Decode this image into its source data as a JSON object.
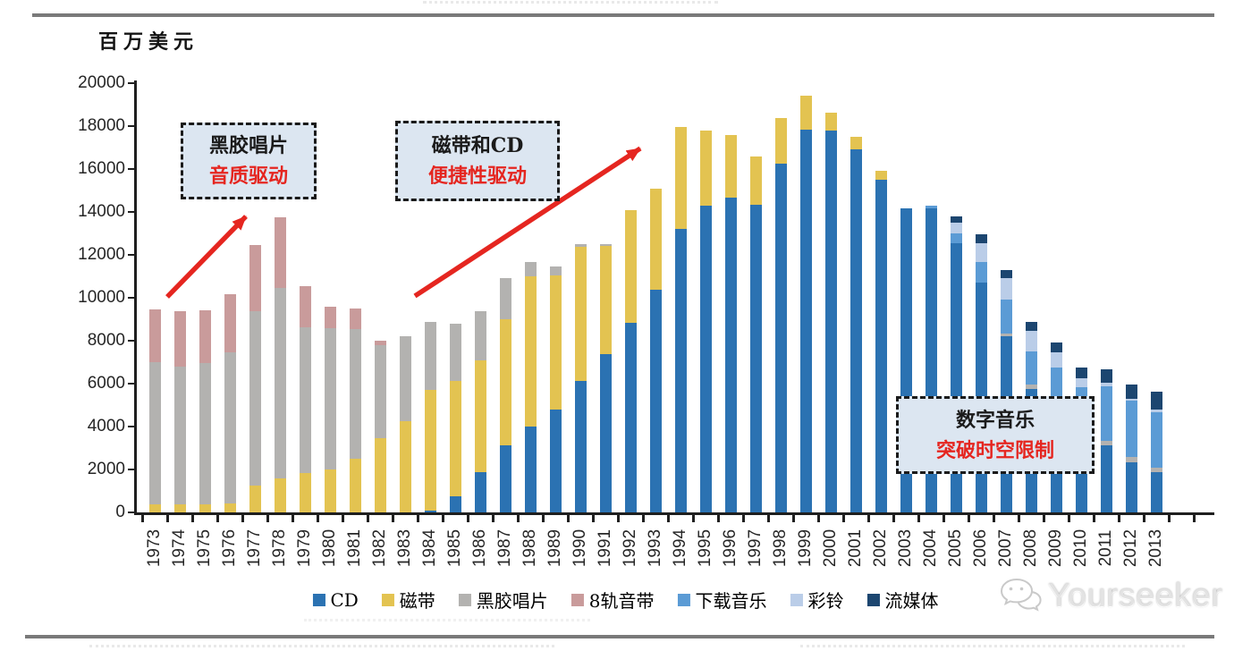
{
  "unit_label": "百万美元",
  "watermark": {
    "text": "Yourseeker"
  },
  "annotations": [
    {
      "line1": "黑胶唱片",
      "line2": "音质驱动"
    },
    {
      "line1": "磁带和CD",
      "line2": "便捷性驱动"
    },
    {
      "line1": "数字音乐",
      "line2": "突破时空限制"
    }
  ],
  "colors": {
    "accent_red": "#e52620",
    "callout_bg": "#dce6f1",
    "callout_border": "#1a1a1a",
    "axis": "#1f1f1f",
    "rule": "#7a7a7a",
    "label_text": "#262626",
    "watermark_gray": "#d6d6d6"
  },
  "chart_data": {
    "type": "bar",
    "stacked": true,
    "title": "",
    "xlabel": "",
    "ylabel": "百万美元",
    "ylim": [
      0,
      20000
    ],
    "ytick_step": 2000,
    "grid": false,
    "legend_position": "bottom",
    "categories": [
      "1973",
      "1974",
      "1975",
      "1976",
      "1977",
      "1978",
      "1979",
      "1980",
      "1981",
      "1982",
      "1983",
      "1984",
      "1985",
      "1986",
      "1987",
      "1988",
      "1989",
      "1990",
      "1991",
      "1992",
      "1993",
      "1994",
      "1995",
      "1996",
      "1997",
      "1998",
      "1999",
      "2000",
      "2001",
      "2002",
      "2003",
      "2004",
      "2005",
      "2006",
      "2007",
      "2008",
      "2009",
      "2010",
      "2011",
      "2012",
      "2013"
    ],
    "series": [
      {
        "name": "CD",
        "color": "#2b72b2",
        "values": [
          0,
          0,
          0,
          0,
          0,
          0,
          0,
          0,
          0,
          0,
          0,
          100,
          750,
          1870,
          3120,
          4020,
          4810,
          6110,
          7360,
          8820,
          10380,
          13210,
          14280,
          14670,
          14320,
          16270,
          17840,
          17800,
          16920,
          15480,
          14150,
          14150,
          12550,
          10700,
          8200,
          5760,
          5270,
          3450,
          3120,
          2350,
          1870
        ]
      },
      {
        "name": "磁带",
        "color": "#e3c351",
        "values": [
          390,
          390,
          390,
          430,
          1270,
          1590,
          1820,
          2000,
          2490,
          3470,
          4270,
          5620,
          5360,
          5220,
          5870,
          6960,
          6240,
          6250,
          5050,
          5260,
          4710,
          4740,
          3520,
          2900,
          2280,
          2090,
          1560,
          830,
          600,
          440,
          0,
          0,
          0,
          0,
          0,
          0,
          0,
          0,
          0,
          0,
          0
        ]
      },
      {
        "name": "黑胶唱片",
        "color": "#b3b2b0",
        "values": [
          6600,
          6420,
          6560,
          7040,
          8110,
          8880,
          6790,
          6590,
          6050,
          4310,
          3930,
          3170,
          2690,
          2270,
          1920,
          700,
          420,
          150,
          100,
          0,
          0,
          0,
          0,
          0,
          0,
          0,
          0,
          0,
          0,
          0,
          0,
          0,
          0,
          0,
          150,
          200,
          150,
          150,
          200,
          250,
          200
        ]
      },
      {
        "name": "8轨音带",
        "color": "#c99b9b",
        "values": [
          2480,
          2570,
          2460,
          2680,
          3060,
          3300,
          1950,
          1000,
          950,
          240,
          0,
          0,
          0,
          0,
          0,
          0,
          0,
          0,
          0,
          0,
          0,
          0,
          0,
          0,
          0,
          0,
          0,
          0,
          0,
          0,
          0,
          0,
          0,
          0,
          0,
          0,
          0,
          0,
          0,
          0,
          0
        ]
      },
      {
        "name": "下载音乐",
        "color": "#5b9bd5",
        "values": [
          0,
          0,
          0,
          0,
          0,
          0,
          0,
          0,
          0,
          0,
          0,
          0,
          0,
          0,
          0,
          0,
          0,
          0,
          0,
          0,
          0,
          0,
          0,
          0,
          0,
          0,
          0,
          0,
          0,
          0,
          0,
          130,
          450,
          950,
          1550,
          1540,
          1320,
          2250,
          2570,
          2590,
          2600
        ]
      },
      {
        "name": "彩铃",
        "color": "#bacde8",
        "values": [
          0,
          0,
          0,
          0,
          0,
          0,
          0,
          0,
          0,
          0,
          0,
          0,
          0,
          0,
          0,
          0,
          0,
          0,
          0,
          0,
          0,
          0,
          0,
          0,
          0,
          0,
          0,
          0,
          0,
          0,
          0,
          0,
          500,
          900,
          1000,
          970,
          700,
          400,
          150,
          120,
          115
        ]
      },
      {
        "name": "流媒体",
        "color": "#1c4670",
        "values": [
          0,
          0,
          0,
          0,
          0,
          0,
          0,
          0,
          0,
          0,
          0,
          0,
          0,
          0,
          0,
          0,
          0,
          0,
          0,
          0,
          0,
          0,
          0,
          0,
          0,
          0,
          0,
          0,
          0,
          0,
          0,
          0,
          300,
          400,
          400,
          420,
          480,
          480,
          630,
          660,
          835
        ]
      }
    ]
  }
}
